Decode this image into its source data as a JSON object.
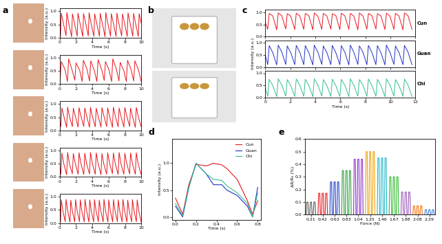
{
  "panel_labels": [
    "a",
    "b",
    "c",
    "d",
    "e"
  ],
  "chart_data": [
    {
      "type": "line",
      "x_label": "Time (s)",
      "y_label": "Intensity (a.u.)",
      "color": "#e8141c",
      "xlim": [
        0,
        10
      ],
      "ylim": [
        0,
        1.1
      ],
      "xticks": [
        0,
        2,
        4,
        6,
        8,
        10
      ],
      "yticks": [
        {
          "value": 0,
          "label": "0.0"
        },
        0.5,
        {
          "value": 1,
          "label": "1.0"
        }
      ],
      "x": [
        0,
        0.1,
        0.2,
        0.45,
        0.78,
        0.88,
        1.13,
        1.46,
        1.56,
        1.81,
        2.14,
        2.24,
        2.49,
        2.82,
        2.92,
        3.17,
        3.5,
        3.6,
        3.85,
        4.18,
        4.28,
        4.53,
        4.86,
        4.96,
        5.21,
        5.54,
        5.64,
        5.89,
        6.22,
        6.32,
        6.57,
        6.9,
        7.0,
        7.25,
        7.58,
        7.68,
        7.93,
        8.26,
        8.36,
        8.61,
        8.94,
        9.04,
        9.29,
        9.62,
        9.72,
        9.97
      ],
      "values": [
        0.45,
        0.05,
        0.92,
        0.55,
        0.08,
        0.95,
        0.52,
        0.04,
        0.9,
        0.56,
        0.06,
        0.93,
        0.54,
        0.05,
        0.91,
        0.57,
        0.07,
        0.94,
        0.53,
        0.05,
        0.9,
        0.55,
        0.06,
        0.92,
        0.56,
        0.04,
        0.95,
        0.54,
        0.06,
        0.91,
        0.55,
        0.05,
        0.93,
        0.52,
        0.07,
        0.9,
        0.56,
        0.05,
        0.94,
        0.55,
        0.06,
        0.92,
        0.53,
        0.05,
        0.91,
        0.55
      ]
    },
    {
      "type": "line",
      "x_label": "Time (s)",
      "y_label": "Intensity (a.u.)",
      "color": "#e8141c",
      "xlim": [
        0,
        10
      ],
      "ylim": [
        0,
        1.1
      ],
      "xticks": [
        0,
        2,
        4,
        6,
        8,
        10
      ],
      "yticks": [
        {
          "value": 0,
          "label": "0.0"
        },
        0.5,
        {
          "value": 1,
          "label": "1.0"
        }
      ],
      "x": [
        0,
        0.05,
        0.2,
        0.65,
        0.95,
        1.1,
        1.55,
        1.85,
        2.0,
        2.45,
        2.75,
        2.9,
        3.35,
        3.65,
        3.8,
        4.25,
        4.55,
        4.7,
        5.15,
        5.45,
        5.6,
        6.05,
        6.35,
        6.5,
        6.95,
        7.25,
        7.4,
        7.85,
        8.15,
        8.3,
        8.75,
        9.05,
        9.2,
        9.65,
        9.95
      ],
      "values": [
        0.3,
        0.12,
        0.85,
        0.55,
        0.1,
        0.95,
        0.5,
        0.15,
        0.8,
        0.52,
        0.1,
        0.9,
        0.55,
        0.12,
        0.88,
        0.5,
        0.1,
        0.92,
        0.54,
        0.14,
        0.85,
        0.52,
        0.1,
        0.95,
        0.55,
        0.12,
        0.82,
        0.5,
        0.1,
        0.9,
        0.53,
        0.12,
        0.88,
        0.52,
        0.12
      ]
    },
    {
      "type": "line",
      "x_label": "Time (s)",
      "y_label": "Intensity (a.u.)",
      "color": "#e8141c",
      "xlim": [
        0,
        10
      ],
      "ylim": [
        0,
        1.1
      ],
      "xticks": [
        0,
        2,
        4,
        6,
        8,
        10
      ],
      "yticks": [
        {
          "value": 0,
          "label": "0.0"
        },
        0.5,
        {
          "value": 1,
          "label": "1.0"
        }
      ],
      "x": [
        0,
        0.15,
        0.27,
        0.5,
        0.85,
        0.97,
        1.2,
        1.55,
        1.67,
        1.9,
        2.25,
        2.37,
        2.6,
        2.95,
        3.07,
        3.3,
        3.65,
        3.77,
        4.0,
        4.35,
        4.47,
        4.7,
        5.05,
        5.17,
        5.4,
        5.75,
        5.87,
        6.1,
        6.45,
        6.57,
        6.8,
        7.15,
        7.27,
        7.5,
        7.85,
        7.97,
        8.2,
        8.55,
        8.67,
        8.9,
        9.25,
        9.37,
        9.6,
        9.95
      ],
      "values": [
        0.4,
        0.15,
        0.85,
        0.55,
        0.12,
        0.88,
        0.52,
        0.15,
        0.84,
        0.56,
        0.13,
        0.86,
        0.54,
        0.15,
        0.85,
        0.55,
        0.12,
        0.87,
        0.53,
        0.14,
        0.84,
        0.55,
        0.13,
        0.86,
        0.56,
        0.15,
        0.85,
        0.54,
        0.12,
        0.88,
        0.55,
        0.14,
        0.85,
        0.53,
        0.13,
        0.86,
        0.55,
        0.15,
        0.84,
        0.54,
        0.12,
        0.87,
        0.55,
        0.15
      ]
    },
    {
      "type": "line",
      "x_label": "Time (s)",
      "y_label": "Intensity (a.u.)",
      "color": "#e8141c",
      "xlim": [
        0,
        10
      ],
      "ylim": [
        0,
        1.1
      ],
      "xticks": [
        0,
        2,
        4,
        6,
        8,
        10
      ],
      "yticks": [
        {
          "value": 0,
          "label": "0.0"
        },
        0.5,
        {
          "value": 1,
          "label": "1.0"
        }
      ],
      "x": [
        0,
        0.15,
        0.27,
        0.5,
        0.85,
        0.97,
        1.2,
        1.55,
        1.67,
        1.9,
        2.25,
        2.37,
        2.6,
        2.95,
        3.07,
        3.3,
        3.65,
        3.77,
        4.0,
        4.35,
        4.47,
        4.7,
        5.05,
        5.17,
        5.4,
        5.75,
        5.87,
        6.1,
        6.45,
        6.57,
        6.8,
        7.15,
        7.27,
        7.5,
        7.85,
        7.97,
        8.2,
        8.55,
        8.67,
        8.9,
        9.25,
        9.37,
        9.6,
        9.95
      ],
      "values": [
        0.5,
        0.1,
        0.9,
        0.5,
        0.08,
        0.92,
        0.48,
        0.12,
        0.88,
        0.52,
        0.1,
        0.91,
        0.5,
        0.09,
        0.89,
        0.49,
        0.11,
        0.92,
        0.51,
        0.1,
        0.9,
        0.5,
        0.08,
        0.88,
        0.48,
        0.1,
        0.91,
        0.52,
        0.12,
        0.9,
        0.5,
        0.09,
        0.92,
        0.49,
        0.1,
        0.89,
        0.51,
        0.11,
        0.9,
        0.5,
        0.1,
        0.91,
        0.49,
        0.1
      ]
    },
    {
      "type": "line",
      "x_label": "Time (s)",
      "y_label": "Intensity (a.u.)",
      "color": "#e8141c",
      "xlim": [
        0,
        10
      ],
      "ylim": [
        0,
        1.1
      ],
      "xticks": [
        0,
        2,
        4,
        6,
        8,
        10
      ],
      "yticks": [
        {
          "value": 0,
          "label": "0.0"
        },
        0.5,
        {
          "value": 1,
          "label": "1.0"
        }
      ],
      "x": [
        0,
        0.1,
        0.2,
        0.4,
        0.68,
        0.78,
        0.98,
        1.26,
        1.36,
        1.56,
        1.84,
        1.94,
        2.14,
        2.42,
        2.52,
        2.72,
        3.0,
        3.1,
        3.3,
        3.58,
        3.68,
        3.88,
        4.16,
        4.26,
        4.46,
        4.74,
        4.84,
        5.04,
        5.32,
        5.42,
        5.62,
        5.9,
        6.0,
        6.2,
        6.48,
        6.58,
        6.78,
        7.06,
        7.16,
        7.36,
        7.64,
        7.74,
        7.94,
        8.22,
        8.32,
        8.52,
        8.8,
        8.9,
        9.1,
        9.38,
        9.48,
        9.68,
        9.96
      ],
      "values": [
        0.5,
        0.05,
        0.88,
        0.45,
        0.06,
        0.9,
        0.47,
        0.04,
        0.87,
        0.44,
        0.05,
        0.89,
        0.46,
        0.06,
        0.88,
        0.45,
        0.05,
        0.9,
        0.46,
        0.04,
        0.88,
        0.44,
        0.05,
        0.89,
        0.45,
        0.06,
        0.87,
        0.46,
        0.05,
        0.9,
        0.45,
        0.04,
        0.88,
        0.47,
        0.05,
        0.89,
        0.45,
        0.06,
        0.88,
        0.44,
        0.05,
        0.9,
        0.46,
        0.04,
        0.87,
        0.45,
        0.05,
        0.89,
        0.46,
        0.06,
        0.88,
        0.45,
        0.05
      ]
    },
    {
      "type": "line",
      "x_label": "Time (s)",
      "y_label": "Intensity (a.u.)",
      "xlim": [
        0,
        12
      ],
      "ylim": [
        0,
        1.1
      ],
      "xticks": [
        0,
        2,
        4,
        6,
        8,
        10,
        12
      ],
      "yticks": [
        {
          "value": 0,
          "label": "0.0"
        },
        0.5,
        {
          "value": 1,
          "label": "1.0"
        }
      ],
      "x": [
        0,
        0.2,
        0.32,
        0.6,
        0.92,
        1.04,
        1.32,
        1.64,
        1.76,
        2.04,
        2.36,
        2.48,
        2.76,
        3.08,
        3.2,
        3.48,
        3.8,
        3.92,
        4.2,
        4.52,
        4.64,
        4.92,
        5.24,
        5.36,
        5.64,
        5.96,
        6.08,
        6.36,
        6.68,
        6.8,
        7.08,
        7.4,
        7.52,
        7.8,
        8.12,
        8.24,
        8.52,
        8.84,
        8.96,
        9.24,
        9.56,
        9.68,
        9.96,
        10.28,
        10.4,
        10.68,
        11.0,
        11.12,
        11.4,
        11.72
      ],
      "series": [
        {
          "name": "Cun",
          "color": "#e8141c",
          "values": [
            0.6,
            0.3,
            0.95,
            0.85,
            0.28,
            0.97,
            0.86,
            0.31,
            0.94,
            0.84,
            0.29,
            0.96,
            0.85,
            0.3,
            0.95,
            0.86,
            0.28,
            0.97,
            0.84,
            0.3,
            0.95,
            0.85,
            0.31,
            0.94,
            0.86,
            0.29,
            0.96,
            0.85,
            0.3,
            0.95,
            0.84,
            0.28,
            0.97,
            0.85,
            0.3,
            0.95,
            0.86,
            0.31,
            0.94,
            0.85,
            0.29,
            0.96,
            0.84,
            0.3,
            0.95,
            0.85,
            0.28,
            0.97,
            0.86,
            0.3
          ]
        },
        {
          "name": "Guan",
          "color": "#1f2fc4",
          "values": [
            0.5,
            0.1,
            0.88,
            0.6,
            0.09,
            0.9,
            0.62,
            0.11,
            0.87,
            0.59,
            0.1,
            0.89,
            0.61,
            0.1,
            0.88,
            0.6,
            0.09,
            0.9,
            0.62,
            0.11,
            0.87,
            0.6,
            0.1,
            0.89,
            0.59,
            0.1,
            0.88,
            0.61,
            0.09,
            0.9,
            0.6,
            0.11,
            0.87,
            0.62,
            0.1,
            0.89,
            0.6,
            0.1,
            0.88,
            0.59,
            0.09,
            0.9,
            0.61,
            0.11,
            0.87,
            0.6,
            0.1,
            0.89,
            0.62,
            0.1
          ]
        },
        {
          "name": "Chi",
          "color": "#2fbf8f",
          "values": [
            0.4,
            0.05,
            0.75,
            0.5,
            0.04,
            0.77,
            0.52,
            0.06,
            0.74,
            0.49,
            0.05,
            0.76,
            0.51,
            0.05,
            0.75,
            0.5,
            0.04,
            0.77,
            0.52,
            0.06,
            0.74,
            0.5,
            0.05,
            0.76,
            0.49,
            0.05,
            0.75,
            0.51,
            0.04,
            0.77,
            0.5,
            0.06,
            0.74,
            0.52,
            0.05,
            0.76,
            0.5,
            0.05,
            0.75,
            0.49,
            0.04,
            0.77,
            0.51,
            0.06,
            0.74,
            0.5,
            0.05,
            0.76,
            0.52,
            0.05
          ]
        }
      ]
    },
    {
      "type": "line",
      "x_label": "Time (s)",
      "y_label": "Intensity (a.u.)",
      "legend": "upper right",
      "xlim": [
        -0.03,
        0.83
      ],
      "ylim": [
        -0.05,
        1.45
      ],
      "xticks": [
        {
          "value": 0,
          "label": "0.0"
        },
        0.2,
        0.4,
        0.6,
        0.8
      ],
      "yticks": [
        {
          "value": 0,
          "label": "0.0"
        },
        0.5,
        {
          "value": 1,
          "label": "1.0"
        }
      ],
      "x": [
        0,
        0.07,
        0.13,
        0.2,
        0.3,
        0.37,
        0.45,
        0.5,
        0.6,
        0.7,
        0.75,
        0.8
      ],
      "series": [
        {
          "name": "Cun",
          "color": "#e8141c",
          "values": [
            0.35,
            0.05,
            0.6,
            0.98,
            0.95,
            1.0,
            0.97,
            0.9,
            0.7,
            0.3,
            0.05,
            0.3
          ]
        },
        {
          "name": "Guan",
          "color": "#1f2fc4",
          "values": [
            0.2,
            0.0,
            0.55,
            1.0,
            0.8,
            0.6,
            0.6,
            0.5,
            0.4,
            0.2,
            0.0,
            0.55
          ]
        },
        {
          "name": "Chi",
          "color": "#2fbf8f",
          "values": [
            0.25,
            0.02,
            0.55,
            1.0,
            0.8,
            0.7,
            0.68,
            0.58,
            0.45,
            0.25,
            0.0,
            0.45
          ]
        }
      ]
    },
    {
      "type": "pulse",
      "x_label": "Force (N)",
      "y_label": "ΔR/R₀ (%)",
      "categories": [
        "0.21",
        "0.42",
        "0.63",
        "0.83",
        "1.04",
        "1.25",
        "1.46",
        "1.67",
        "1.88",
        "2.08",
        "2.29"
      ],
      "values": [
        0.1,
        0.17,
        0.26,
        0.35,
        0.44,
        0.5,
        0.45,
        0.3,
        0.18,
        0.07,
        0.04
      ],
      "colors": [
        "#555555",
        "#e8141c",
        "#1f3fc4",
        "#2e9e3e",
        "#8b2fc9",
        "#f0a000",
        "#1fb7c9",
        "#2eb82e",
        "#9b59b6",
        "#f07000",
        "#3f7fd9"
      ],
      "ylim": [
        0,
        0.6
      ],
      "yticks": [
        {
          "value": 0,
          "label": "0.0"
        },
        0.1,
        0.2,
        0.3,
        0.4,
        0.5,
        0.6
      ]
    }
  ]
}
